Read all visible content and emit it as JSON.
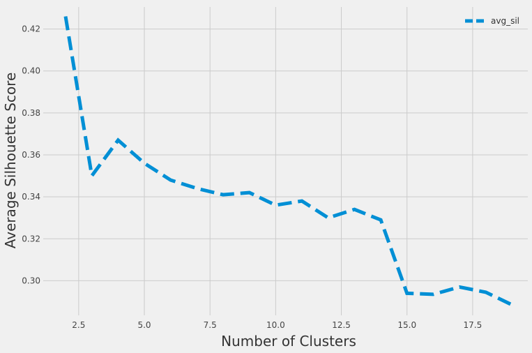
{
  "chart_data": {
    "type": "line",
    "title": "",
    "xlabel": "Number of Clusters",
    "ylabel": "Average Silhouette Score",
    "xlim": [
      1.15,
      19.6
    ],
    "ylim": [
      0.2835,
      0.4305
    ],
    "xticks": [
      2.5,
      5.0,
      7.5,
      10.0,
      12.5,
      15.0,
      17.5
    ],
    "xtick_labels": [
      "2.5",
      "5.0",
      "7.5",
      "10.0",
      "12.5",
      "15.0",
      "17.5"
    ],
    "yticks": [
      0.3,
      0.32,
      0.34,
      0.36,
      0.38,
      0.4,
      0.42
    ],
    "ytick_labels": [
      "0.30",
      "0.32",
      "0.34",
      "0.36",
      "0.38",
      "0.40",
      "0.42"
    ],
    "grid": true,
    "legend_position": "top-right",
    "series": [
      {
        "name": "avg_sil",
        "color": "#008fd5",
        "style": "dashed",
        "x": [
          2,
          3,
          4,
          5,
          6,
          7,
          8,
          9,
          10,
          11,
          12,
          13,
          14,
          15,
          16,
          17,
          18,
          19
        ],
        "y": [
          0.426,
          0.35,
          0.367,
          0.356,
          0.348,
          0.344,
          0.341,
          0.342,
          0.336,
          0.338,
          0.33,
          0.334,
          0.329,
          0.294,
          0.2935,
          0.297,
          0.2945,
          0.2885
        ]
      }
    ]
  }
}
